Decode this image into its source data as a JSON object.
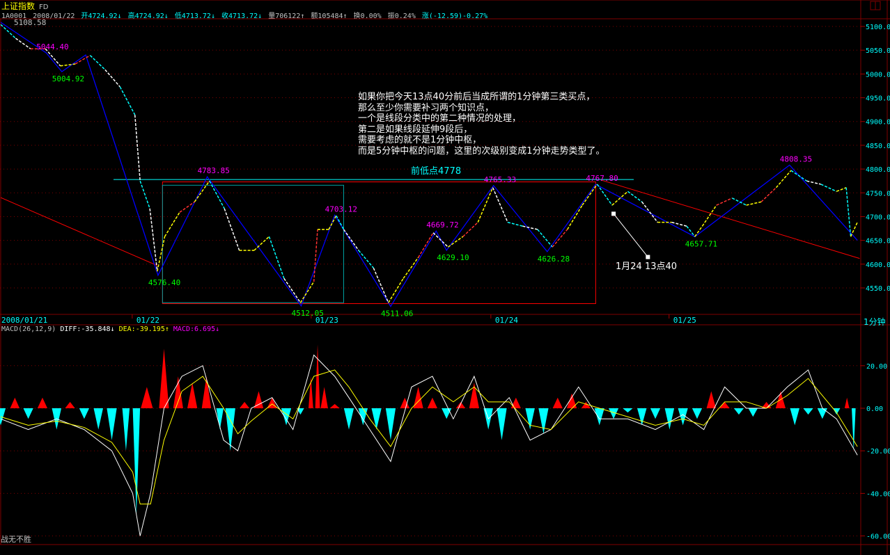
{
  "header": {
    "index_name": "上证指数",
    "suffix": "FD",
    "code": "1A0001",
    "date": "2008/01/22",
    "open": "开4724.92↓",
    "high": "高4724.92↓",
    "low": "低4713.72↓",
    "close": "收4713.72↓",
    "volume": "量706122↑",
    "amount": "额105484↑",
    "turnover": "换0.00%",
    "amplitude": "振0.24%",
    "change": "涨(-12.59)-0.27%"
  },
  "annotation": {
    "note_lines": [
      "如果你把今天13点40分前后当成所谓的1分钟第三类买点，",
      "那么至少你需要补习两个知识点，",
      "一个是线段分类中的第二种情况的处理，",
      "第二是如果线段延伸9段后，",
      "需要考虑的就不是1分钟中枢，",
      "而是5分钟中枢的问题，这里的次级别变成1分钟走势类型了。"
    ],
    "prev_low": "前低点4778",
    "arrow_label": "1月24 13点40"
  },
  "period": "1分钟",
  "brand": "战无不胜",
  "macd_header": {
    "name": "MACD(26,12,9)",
    "diff": "DIFF:-35.848↓",
    "dea": "DEA:-39.195↑",
    "macd": "MACD:6.695↓"
  },
  "colors": {
    "up": "#ff0000",
    "down": "#00ffff",
    "pen": "#0000ff",
    "diff": "#ffffff",
    "dea": "#ffff00",
    "high_label": "#ff00ff",
    "low_label": "#00ff00",
    "border": "#800000"
  },
  "chart_data": [
    {
      "type": "line",
      "xlabel": "",
      "ylabel": "",
      "x_unit": "minute",
      "x_ticks": [
        {
          "x": 0,
          "label": "2008/01/21"
        },
        {
          "x": 182,
          "label": "01/22"
        },
        {
          "x": 422,
          "label": "01/23"
        },
        {
          "x": 663,
          "label": "01/24"
        },
        {
          "x": 902,
          "label": "01/25"
        }
      ],
      "ylim": [
        4510,
        5140
      ],
      "y_ticks": [
        "5100.0",
        "5050.0",
        "5000.0",
        "4950.0",
        "4900.0",
        "4850.0",
        "4800.0",
        "4750.0",
        "4700.0",
        "4650.0",
        "4600.0",
        "4550.0"
      ],
      "grid": true,
      "price": {
        "x": [
          0,
          20,
          40,
          60,
          80,
          100,
          120,
          140,
          160,
          180,
          187,
          200,
          210,
          220,
          240,
          260,
          280,
          300,
          320,
          340,
          360,
          380,
          402,
          420,
          425,
          440,
          450,
          460,
          480,
          500,
          520,
          540,
          560,
          580,
          600,
          620,
          640,
          660,
          680,
          700,
          720,
          740,
          760,
          780,
          800,
          820,
          841,
          860,
          881,
          900,
          920,
          931,
          941,
          960,
          981,
          1000,
          1020,
          1040,
          1060,
          1081,
          1100,
          1121,
          1134,
          1140,
          1149
        ],
        "close": [
          5104,
          5075,
          5053,
          5053,
          5017,
          5021,
          5039,
          5009,
          4973,
          4914,
          4775,
          4717,
          4585,
          4658,
          4709,
          4731,
          4775,
          4717,
          4629,
          4629,
          4658,
          4570,
          4519,
          4563,
          4673,
          4673,
          4702,
          4673,
          4629,
          4592,
          4519,
          4570,
          4614,
          4666,
          4636,
          4658,
          4688,
          4761,
          4688,
          4680,
          4673,
          4636,
          4673,
          4724,
          4768,
          4724,
          4753,
          4731,
          4688,
          4688,
          4680,
          4658,
          4680,
          4724,
          4739,
          4724,
          4731,
          4761,
          4797,
          4775,
          4768,
          4753,
          4761,
          4658,
          4688
        ]
      },
      "pen_vertices": [
        {
          "x": 0,
          "price": 5108.58,
          "label": "5108.58",
          "kind": "start"
        },
        {
          "x": 61,
          "price": 5044.4,
          "label": "5044.40",
          "kind": "high"
        },
        {
          "x": 82,
          "price": 5004.92,
          "label": "5004.92",
          "kind": "low"
        },
        {
          "x": 114,
          "price": 5040,
          "label": "",
          "kind": "high"
        },
        {
          "x": 211,
          "price": 4576.4,
          "label": "4576.40",
          "kind": "low"
        },
        {
          "x": 277,
          "price": 4783.85,
          "label": "4783.85",
          "kind": "high"
        },
        {
          "x": 403,
          "price": 4512.05,
          "label": "4512.05",
          "kind": "low"
        },
        {
          "x": 448,
          "price": 4703.12,
          "label": "4703.12",
          "kind": "high"
        },
        {
          "x": 523,
          "price": 4511.06,
          "label": "4511.06",
          "kind": "low"
        },
        {
          "x": 584,
          "price": 4669.72,
          "label": "4669.72",
          "kind": "high"
        },
        {
          "x": 598,
          "price": 4629.1,
          "label": "4629.10",
          "kind": "low"
        },
        {
          "x": 661,
          "price": 4765.33,
          "label": "4765.33",
          "kind": "high"
        },
        {
          "x": 733,
          "price": 4626.28,
          "label": "4626.28",
          "kind": "low"
        },
        {
          "x": 798,
          "price": 4767.8,
          "label": "4767.80",
          "kind": "high"
        },
        {
          "x": 931,
          "price": 4657.71,
          "label": "4657.71",
          "kind": "low"
        },
        {
          "x": 1058,
          "price": 4808.35,
          "label": "4808.35",
          "kind": "high"
        },
        {
          "x": 1149,
          "price": 4650,
          "label": "",
          "kind": "end"
        }
      ],
      "prev_low_line": 4778,
      "zhongshu_boxes": [
        {
          "x0": 217,
          "x1": 798,
          "top": 4773,
          "bottom": 4517,
          "color": "#ff0000"
        },
        {
          "x0": 217,
          "x1": 460,
          "top": 4766,
          "bottom": 4519,
          "color": "#00a0a0"
        }
      ],
      "trend_lines": [
        {
          "x0": 0,
          "p0": 4740,
          "x1": 210,
          "p1": 4597
        },
        {
          "x0": 805,
          "p0": 4777,
          "x1": 1152,
          "p1": 4612
        }
      ],
      "arrow": {
        "from": {
          "x": 822,
          "price": 4706
        },
        "to": {
          "x": 868,
          "price": 4615
        }
      }
    },
    {
      "type": "bar",
      "name": "MACD(26,12,9)",
      "ylim": [
        -62,
        32
      ],
      "y_ticks": [
        "20.00",
        "0.00",
        "-20.00",
        "-40.00",
        "-60.00"
      ],
      "x": [
        0,
        19,
        37,
        56,
        75,
        93,
        112,
        131,
        149,
        168,
        182,
        196,
        219,
        238,
        257,
        276,
        294,
        308,
        327,
        346,
        364,
        383,
        402,
        416,
        425,
        434,
        448,
        467,
        486,
        504,
        523,
        542,
        560,
        579,
        598,
        617,
        635,
        654,
        672,
        691,
        710,
        728,
        747,
        766,
        785,
        803,
        822,
        841,
        860,
        878,
        897,
        915,
        934,
        953,
        971,
        990,
        1009,
        1027,
        1046,
        1065,
        1083,
        1102,
        1121,
        1135,
        1144
      ],
      "macd": [
        -8,
        5,
        -5,
        5,
        -10,
        3,
        -5,
        -10,
        -15,
        -20,
        -50,
        10,
        28,
        15,
        12,
        15,
        -10,
        -20,
        3,
        8,
        5,
        -8,
        -3,
        15,
        30,
        10,
        2,
        -10,
        -8,
        -10,
        -15,
        5,
        10,
        5,
        -5,
        3,
        12,
        -10,
        -15,
        5,
        -10,
        -12,
        5,
        7,
        3,
        -8,
        -5,
        -2,
        -8,
        -5,
        -10,
        -8,
        -5,
        8,
        3,
        -3,
        -4,
        3,
        8,
        -8,
        -3,
        -5,
        -3,
        5,
        -20
      ],
      "diff_x": [
        0,
        37,
        75,
        112,
        149,
        177,
        187,
        201,
        219,
        243,
        271,
        299,
        318,
        336,
        364,
        392,
        420,
        448,
        467,
        495,
        523,
        551,
        579,
        607,
        635,
        654,
        682,
        710,
        738,
        775,
        803,
        841,
        878,
        915,
        943,
        971,
        1000,
        1027,
        1055,
        1083,
        1102,
        1121,
        1149
      ],
      "diff": [
        -5,
        -10,
        -5,
        -10,
        -20,
        -40,
        -60,
        -40,
        0,
        15,
        20,
        -15,
        -20,
        0,
        5,
        -10,
        25,
        15,
        5,
        -10,
        -25,
        10,
        15,
        -5,
        15,
        -5,
        5,
        -15,
        -10,
        10,
        -5,
        -5,
        -10,
        -3,
        -10,
        10,
        0,
        0,
        10,
        18,
        0,
        -5,
        -22
      ],
      "dea": [
        -4,
        -8,
        -6,
        -9,
        -16,
        -30,
        -45,
        -45,
        -15,
        8,
        15,
        0,
        -12,
        -6,
        2,
        -5,
        15,
        18,
        10,
        -5,
        -18,
        0,
        10,
        3,
        10,
        3,
        3,
        -8,
        -10,
        3,
        0,
        -4,
        -8,
        -5,
        -8,
        3,
        3,
        0,
        6,
        14,
        6,
        -2,
        -18
      ]
    }
  ]
}
